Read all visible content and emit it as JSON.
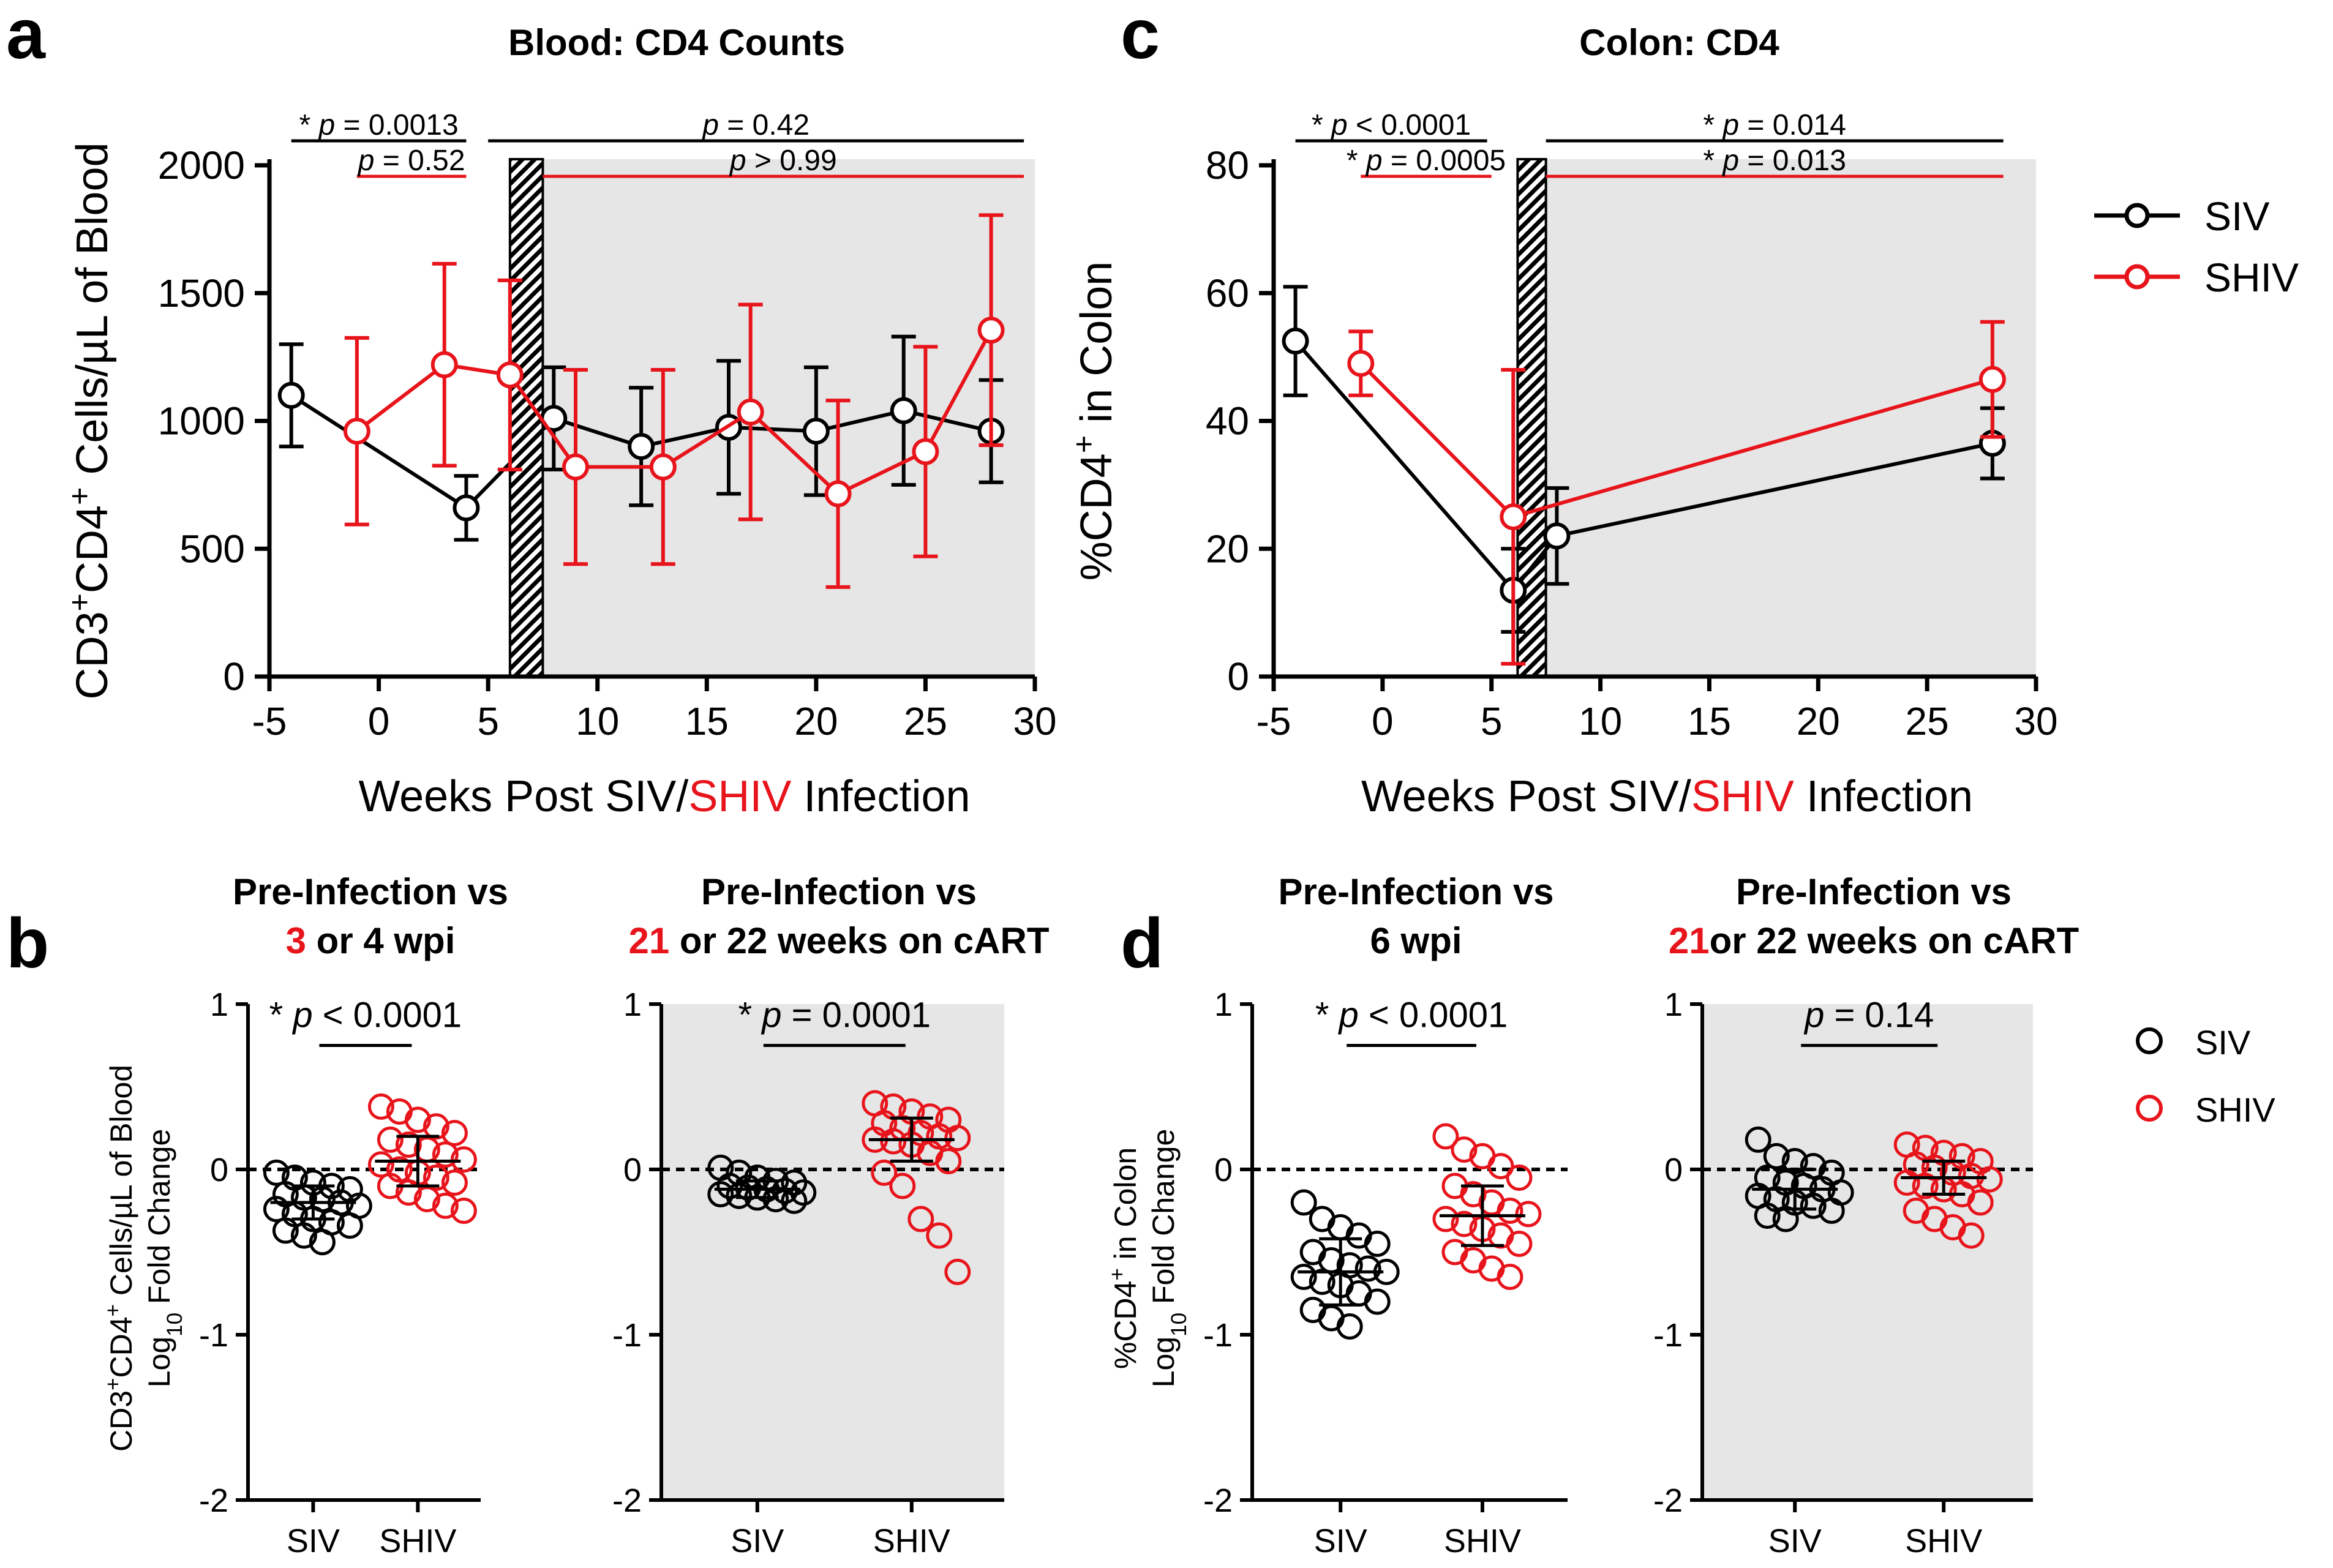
{
  "panel_labels": {
    "a": "a",
    "b": "b",
    "c": "c",
    "d": "d"
  },
  "colors": {
    "siv": "#000000",
    "shiv": "#e8141b",
    "shade": "#e6e6e6"
  },
  "legend": {
    "siv": "SIV",
    "shiv": "SHIV"
  },
  "xlabel": {
    "pre": "Weeks Post SIV/",
    "red": "SHIV",
    "post": " Infection"
  },
  "chart_data": [
    {
      "id": "a",
      "type": "line",
      "title": "Blood: CD4 Counts",
      "ylabel": "CD3+CD4+ Cells/µL of Blood",
      "xlabel": "Weeks Post SIV/SHIV Infection",
      "xlim": [
        -5,
        30
      ],
      "ylim": [
        0,
        2000
      ],
      "xticks": [
        -5,
        0,
        5,
        10,
        15,
        20,
        25,
        30
      ],
      "yticks": [
        0,
        500,
        1000,
        1500,
        2000
      ],
      "shaded_from": 7.5,
      "hatch_range": [
        6,
        7.5
      ],
      "series": [
        {
          "name": "SIV",
          "x": [
            -4,
            4,
            8,
            12,
            16,
            20,
            24,
            28
          ],
          "y": [
            1100,
            660,
            1010,
            900,
            975,
            960,
            1040,
            960
          ],
          "err": [
            200,
            125,
            200,
            230,
            260,
            250,
            290,
            200
          ]
        },
        {
          "name": "SHIV",
          "x": [
            -1,
            3,
            6,
            9,
            13,
            17,
            21,
            25,
            28
          ],
          "y": [
            960,
            1220,
            1180,
            820,
            820,
            1035,
            715,
            880,
            1355
          ],
          "err": [
            365,
            395,
            370,
            380,
            380,
            420,
            365,
            410,
            450
          ]
        }
      ],
      "stats": [
        {
          "star": "*",
          "label": "p = 0.0013",
          "color": "siv",
          "x1": -4,
          "x2": 4
        },
        {
          "star": "",
          "label": "p = 0.52",
          "color": "shiv",
          "x1": -1,
          "x2": 4
        },
        {
          "star": "",
          "label": "p = 0.42",
          "color": "siv",
          "x1": 5,
          "x2": 29.5
        },
        {
          "star": "",
          "label": "p > 0.99",
          "color": "shiv",
          "x1": 7.5,
          "x2": 29.5
        }
      ]
    },
    {
      "id": "c",
      "type": "line",
      "title": "Colon: CD4",
      "ylabel": "%CD4+ in Colon",
      "xlabel": "Weeks Post SIV/SHIV Infection",
      "xlim": [
        -5,
        30
      ],
      "ylim": [
        0,
        80
      ],
      "xticks": [
        -5,
        0,
        5,
        10,
        15,
        20,
        25,
        30
      ],
      "yticks": [
        0,
        20,
        40,
        60,
        80
      ],
      "shaded_from": 7.5,
      "hatch_range": [
        6.2,
        7.5
      ],
      "series": [
        {
          "name": "SIV",
          "x": [
            -4,
            6,
            8,
            28
          ],
          "y": [
            52.5,
            13.5,
            22,
            36.5
          ],
          "err": [
            8.5,
            6.5,
            7.5,
            5.5
          ]
        },
        {
          "name": "SHIV",
          "x": [
            -1,
            6,
            28
          ],
          "y": [
            49,
            25,
            46.5
          ],
          "err": [
            5,
            23,
            9
          ]
        }
      ],
      "stats": [
        {
          "star": "*",
          "label": "p < 0.0001",
          "color": "siv",
          "x1": -4,
          "x2": 4.8
        },
        {
          "star": "*",
          "label": "p = 0.0005",
          "color": "shiv",
          "x1": -1,
          "x2": 5
        },
        {
          "star": "*",
          "label": "p = 0.014",
          "color": "siv",
          "x1": 7.5,
          "x2": 28.5
        },
        {
          "star": "*",
          "label": "p = 0.013",
          "color": "shiv",
          "x1": 7.5,
          "x2": 28.5
        }
      ]
    },
    {
      "id": "b1",
      "type": "scatter",
      "title_lines": [
        {
          "pre": "Pre-Infection vs",
          "red": "",
          "post": ""
        },
        {
          "pre": "",
          "red": "3",
          "post": " or 4 wpi"
        }
      ],
      "ylabel": [
        "CD3+CD4+ Cells/µL of Blood",
        "Log10 Fold Change"
      ],
      "categories": [
        "SIV",
        "SHIV"
      ],
      "ylim": [
        -2,
        1
      ],
      "yticks": [
        -2,
        -1,
        0,
        1
      ],
      "shaded": false,
      "stat": {
        "star": "*",
        "label": "p < 0.0001"
      },
      "groups": [
        {
          "name": "SIV",
          "mean": -0.2,
          "sd": 0.1,
          "values": [
            -0.02,
            -0.05,
            -0.08,
            -0.1,
            -0.12,
            -0.15,
            -0.17,
            -0.18,
            -0.2,
            -0.22,
            -0.24,
            -0.27,
            -0.3,
            -0.32,
            -0.34,
            -0.37,
            -0.4,
            -0.44
          ]
        },
        {
          "name": "SHIV",
          "mean": 0.05,
          "sd": 0.15,
          "values": [
            0.38,
            0.35,
            0.3,
            0.26,
            0.22,
            0.18,
            0.15,
            0.12,
            0.09,
            0.06,
            0.03,
            0.0,
            -0.02,
            -0.05,
            -0.08,
            -0.1,
            -0.14,
            -0.18,
            -0.22,
            -0.25
          ]
        }
      ]
    },
    {
      "id": "b2",
      "type": "scatter",
      "title_lines": [
        {
          "pre": "Pre-Infection vs",
          "red": "",
          "post": ""
        },
        {
          "pre": "",
          "red": "21",
          "post": " or 22 weeks on cART"
        }
      ],
      "categories": [
        "SIV",
        "SHIV"
      ],
      "ylim": [
        -2,
        1
      ],
      "yticks": [
        -2,
        -1,
        0,
        1
      ],
      "shaded": true,
      "stat": {
        "star": "*",
        "label": "p = 0.0001"
      },
      "groups": [
        {
          "name": "SIV",
          "mean": -0.12,
          "sd": 0.05,
          "values": [
            0.01,
            -0.02,
            -0.05,
            -0.07,
            -0.08,
            -0.1,
            -0.11,
            -0.12,
            -0.13,
            -0.14,
            -0.15,
            -0.16,
            -0.17,
            -0.18,
            -0.19
          ]
        },
        {
          "name": "SHIV",
          "mean": 0.18,
          "sd": 0.13,
          "values": [
            0.4,
            0.38,
            0.35,
            0.32,
            0.3,
            0.28,
            0.25,
            0.22,
            0.2,
            0.19,
            0.18,
            0.17,
            0.15,
            0.1,
            0.05,
            -0.02,
            -0.1,
            -0.3,
            -0.4,
            -0.62
          ]
        }
      ]
    },
    {
      "id": "d1",
      "type": "scatter",
      "title_lines": [
        {
          "pre": "Pre-Infection vs",
          "red": "",
          "post": ""
        },
        {
          "pre": "6 wpi",
          "red": "",
          "post": ""
        }
      ],
      "ylabel": [
        "%CD4+ in Colon",
        "Log10 Fold Change"
      ],
      "categories": [
        "SIV",
        "SHIV"
      ],
      "ylim": [
        -2,
        1
      ],
      "yticks": [
        -2,
        -1,
        0,
        1
      ],
      "shaded": false,
      "stat": {
        "star": "*",
        "label": "p < 0.0001"
      },
      "groups": [
        {
          "name": "SIV",
          "mean": -0.62,
          "sd": 0.2,
          "values": [
            -0.2,
            -0.3,
            -0.35,
            -0.4,
            -0.45,
            -0.5,
            -0.55,
            -0.58,
            -0.6,
            -0.62,
            -0.65,
            -0.68,
            -0.7,
            -0.75,
            -0.8,
            -0.85,
            -0.9,
            -0.95
          ]
        },
        {
          "name": "SHIV",
          "mean": -0.28,
          "sd": 0.18,
          "values": [
            0.2,
            0.12,
            0.08,
            0.02,
            -0.05,
            -0.1,
            -0.15,
            -0.2,
            -0.25,
            -0.27,
            -0.3,
            -0.33,
            -0.36,
            -0.4,
            -0.45,
            -0.5,
            -0.55,
            -0.6,
            -0.65
          ]
        }
      ]
    },
    {
      "id": "d2",
      "type": "scatter",
      "title_lines": [
        {
          "pre": "Pre-Infection vs",
          "red": "",
          "post": ""
        },
        {
          "pre": "",
          "red": "21",
          "post": "or 22 weeks on cART"
        }
      ],
      "categories": [
        "SIV",
        "SHIV"
      ],
      "ylim": [
        -2,
        1
      ],
      "yticks": [
        -2,
        -1,
        0,
        1
      ],
      "shaded": true,
      "stat": {
        "star": "",
        "label": "p = 0.14"
      },
      "groups": [
        {
          "name": "SIV",
          "mean": -0.12,
          "sd": 0.12,
          "values": [
            0.18,
            0.08,
            0.05,
            0.02,
            -0.02,
            -0.05,
            -0.08,
            -0.1,
            -0.12,
            -0.14,
            -0.16,
            -0.18,
            -0.2,
            -0.22,
            -0.25,
            -0.28,
            -0.3
          ]
        },
        {
          "name": "SHIV",
          "mean": -0.05,
          "sd": 0.1,
          "values": [
            0.15,
            0.13,
            0.1,
            0.08,
            0.05,
            0.03,
            0.01,
            -0.02,
            -0.04,
            -0.06,
            -0.08,
            -0.1,
            -0.12,
            -0.15,
            -0.2,
            -0.25,
            -0.3,
            -0.35,
            -0.4
          ]
        }
      ]
    }
  ]
}
